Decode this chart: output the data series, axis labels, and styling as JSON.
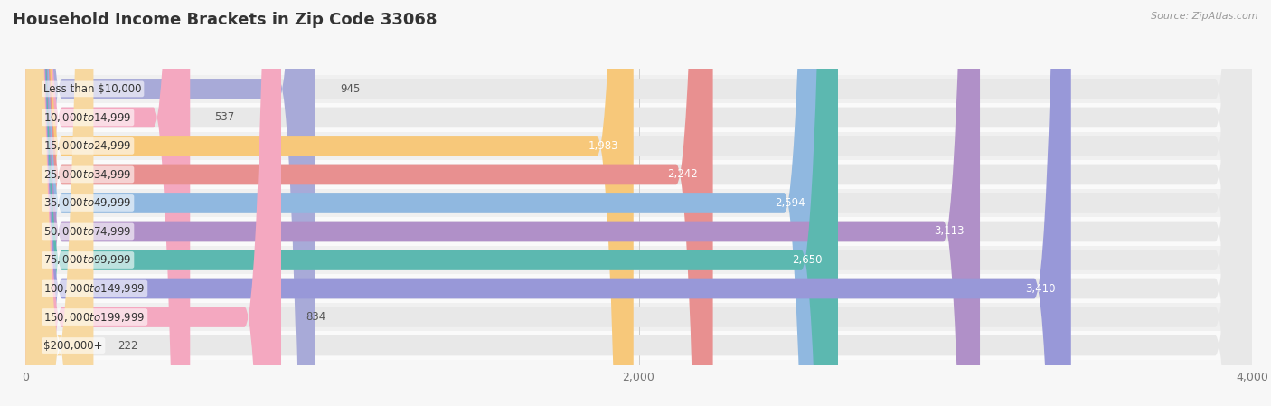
{
  "title": "Household Income Brackets in Zip Code 33068",
  "source": "Source: ZipAtlas.com",
  "categories": [
    "Less than $10,000",
    "$10,000 to $14,999",
    "$15,000 to $24,999",
    "$25,000 to $34,999",
    "$35,000 to $49,999",
    "$50,000 to $74,999",
    "$75,000 to $99,999",
    "$100,000 to $149,999",
    "$150,000 to $199,999",
    "$200,000+"
  ],
  "values": [
    945,
    537,
    1983,
    2242,
    2594,
    3113,
    2650,
    3410,
    834,
    222
  ],
  "bar_colors": [
    "#a8aad8",
    "#f4a8c0",
    "#f7c87a",
    "#e89090",
    "#90b8e0",
    "#b090c8",
    "#5cb8b0",
    "#9898d8",
    "#f4a8c0",
    "#f7d8a0"
  ],
  "xlim_max": 4000,
  "xticks": [
    0,
    2000,
    4000
  ],
  "xtick_labels": [
    "0",
    "2,000",
    "4,000"
  ],
  "background_color": "#f7f7f7",
  "bar_bg_color": "#e8e8e8",
  "row_bg_colors": [
    "#f0f0f0",
    "#fafafa"
  ],
  "title_fontsize": 13,
  "label_fontsize": 8.5,
  "value_fontsize": 8.5
}
